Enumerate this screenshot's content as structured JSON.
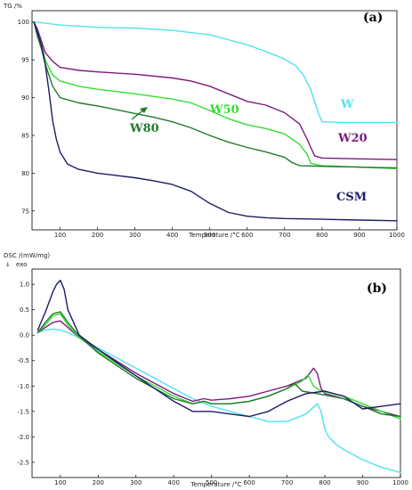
{
  "chart_data": [
    {
      "type": "line",
      "panel_label": "(a)",
      "ylabel": "TG /%",
      "xlabel": "Temperature /°C",
      "xlim": [
        25,
        1000
      ],
      "ylim": [
        72.5,
        101.5
      ],
      "xticks": [
        100,
        200,
        300,
        400,
        500,
        600,
        700,
        800,
        900,
        1000
      ],
      "yticks": [
        75,
        80,
        85,
        90,
        95,
        100
      ],
      "series": [
        {
          "name": "W",
          "color": "#4fe3ee",
          "x": [
            30,
            50,
            100,
            200,
            300,
            400,
            500,
            600,
            650,
            700,
            730,
            750,
            770,
            790,
            800,
            850,
            900,
            1000
          ],
          "y": [
            100.0,
            99.9,
            99.6,
            99.3,
            99.2,
            98.9,
            98.3,
            97.0,
            96.1,
            95.1,
            94.2,
            93.0,
            91.0,
            88.0,
            86.8,
            86.7,
            86.7,
            86.7
          ]
        },
        {
          "name": "W20",
          "color": "#7d1a7d",
          "x": [
            30,
            40,
            50,
            60,
            80,
            100,
            150,
            200,
            300,
            400,
            450,
            500,
            550,
            600,
            650,
            700,
            740,
            760,
            780,
            800,
            900,
            1000
          ],
          "y": [
            100.0,
            99.0,
            97.5,
            96.0,
            94.8,
            94.0,
            93.6,
            93.4,
            93.1,
            92.6,
            92.2,
            91.5,
            90.5,
            89.5,
            89.0,
            88.0,
            86.5,
            84.5,
            82.3,
            82.0,
            81.9,
            81.8
          ]
        },
        {
          "name": "W50",
          "color": "#33dd33",
          "x": [
            30,
            40,
            50,
            60,
            80,
            100,
            150,
            200,
            300,
            400,
            450,
            500,
            550,
            600,
            650,
            700,
            720,
            740,
            760,
            770,
            800,
            900,
            1000
          ],
          "y": [
            100.0,
            98.5,
            97.0,
            95.0,
            93.0,
            92.2,
            91.5,
            91.1,
            90.5,
            89.8,
            89.3,
            88.3,
            87.2,
            86.4,
            85.9,
            85.2,
            84.5,
            83.8,
            82.5,
            81.3,
            81.0,
            80.8,
            80.6
          ]
        },
        {
          "name": "W80",
          "color": "#1f7a2a",
          "x": [
            30,
            40,
            50,
            60,
            80,
            100,
            150,
            200,
            250,
            300,
            350,
            400,
            450,
            500,
            550,
            600,
            650,
            700,
            720,
            740,
            800,
            900,
            1000
          ],
          "y": [
            100.0,
            98.0,
            96.5,
            94.5,
            91.5,
            90.0,
            89.3,
            88.9,
            88.4,
            87.9,
            87.4,
            86.8,
            86.0,
            85.0,
            84.1,
            83.4,
            82.8,
            82.1,
            81.4,
            81.0,
            80.9,
            80.8,
            80.7
          ]
        },
        {
          "name": "CSM",
          "color": "#1c1c66",
          "x": [
            30,
            40,
            50,
            60,
            70,
            80,
            90,
            100,
            120,
            150,
            200,
            250,
            300,
            350,
            400,
            450,
            500,
            550,
            600,
            650,
            700,
            800,
            900,
            1000
          ],
          "y": [
            100.0,
            98.5,
            97.0,
            94.5,
            91.0,
            87.0,
            84.5,
            82.8,
            81.2,
            80.5,
            80.0,
            79.7,
            79.4,
            79.0,
            78.5,
            77.6,
            76.0,
            74.8,
            74.3,
            74.1,
            74.0,
            73.9,
            73.8,
            73.7
          ]
        }
      ],
      "label_texts": {
        "W": "W",
        "W20": "W20",
        "W50": "W50",
        "W80": "W80",
        "CSM": "CSM"
      }
    },
    {
      "type": "line",
      "panel_label": "(b)",
      "ylabel": "DSC /(mW/mg)",
      "ylabel_sub": "exo",
      "xlabel": "Temperature /°C",
      "xlim": [
        25,
        1000
      ],
      "ylim": [
        -2.8,
        1.3
      ],
      "xticks": [
        100,
        200,
        300,
        400,
        500,
        600,
        700,
        800,
        900,
        1000
      ],
      "yticks": [
        -2.5,
        -2.0,
        -1.5,
        -1.0,
        -0.5,
        0.0,
        0.5,
        1.0
      ],
      "series": [
        {
          "name": "W",
          "color": "#4fe3ee",
          "x": [
            40,
            60,
            80,
            100,
            120,
            150,
            200,
            300,
            400,
            450,
            500,
            550,
            600,
            650,
            700,
            750,
            780,
            790,
            800,
            810,
            830,
            850,
            900,
            950,
            1000
          ],
          "y": [
            0.05,
            0.1,
            0.12,
            0.1,
            0.05,
            -0.05,
            -0.25,
            -0.65,
            -1.05,
            -1.25,
            -1.4,
            -1.5,
            -1.6,
            -1.7,
            -1.7,
            -1.55,
            -1.35,
            -1.5,
            -1.85,
            -2.0,
            -2.15,
            -2.25,
            -2.45,
            -2.6,
            -2.7
          ]
        },
        {
          "name": "W20",
          "color": "#7d1a7d",
          "x": [
            40,
            60,
            80,
            100,
            120,
            150,
            200,
            300,
            400,
            450,
            480,
            500,
            550,
            600,
            650,
            700,
            750,
            770,
            780,
            790,
            800,
            850,
            900,
            950,
            1000
          ],
          "y": [
            0.05,
            0.15,
            0.25,
            0.28,
            0.15,
            -0.05,
            -0.28,
            -0.75,
            -1.15,
            -1.3,
            -1.25,
            -1.28,
            -1.25,
            -1.2,
            -1.1,
            -1.0,
            -0.85,
            -0.65,
            -0.75,
            -1.05,
            -1.15,
            -1.25,
            -1.4,
            -1.5,
            -1.6
          ]
        },
        {
          "name": "W50",
          "color": "#33dd33",
          "x": [
            40,
            60,
            80,
            100,
            120,
            150,
            200,
            300,
            400,
            450,
            480,
            500,
            550,
            600,
            650,
            700,
            740,
            755,
            770,
            790,
            850,
            900,
            950,
            1000
          ],
          "y": [
            0.05,
            0.2,
            0.38,
            0.42,
            0.2,
            -0.05,
            -0.32,
            -0.8,
            -1.2,
            -1.35,
            -1.3,
            -1.35,
            -1.35,
            -1.3,
            -1.2,
            -1.05,
            -0.9,
            -0.78,
            -1.0,
            -1.1,
            -1.2,
            -1.35,
            -1.5,
            -1.65
          ]
        },
        {
          "name": "W80",
          "color": "#1f7a2a",
          "x": [
            40,
            60,
            80,
            100,
            120,
            150,
            200,
            300,
            400,
            450,
            480,
            500,
            550,
            600,
            650,
            700,
            720,
            740,
            780,
            850,
            900,
            950,
            1000
          ],
          "y": [
            0.05,
            0.25,
            0.42,
            0.46,
            0.25,
            -0.02,
            -0.35,
            -0.85,
            -1.25,
            -1.35,
            -1.3,
            -1.35,
            -1.35,
            -1.3,
            -1.2,
            -1.05,
            -0.95,
            -1.1,
            -1.15,
            -1.25,
            -1.4,
            -1.55,
            -1.6
          ]
        },
        {
          "name": "CSM",
          "color": "#1c1c66",
          "x": [
            40,
            60,
            80,
            90,
            100,
            110,
            120,
            150,
            200,
            300,
            400,
            450,
            500,
            550,
            600,
            650,
            700,
            750,
            800,
            850,
            880,
            900,
            950,
            1000
          ],
          "y": [
            0.1,
            0.45,
            0.85,
            1.0,
            1.08,
            0.9,
            0.5,
            0.0,
            -0.28,
            -0.8,
            -1.3,
            -1.5,
            -1.5,
            -1.55,
            -1.6,
            -1.5,
            -1.3,
            -1.15,
            -1.1,
            -1.2,
            -1.35,
            -1.45,
            -1.4,
            -1.35
          ]
        }
      ]
    }
  ]
}
